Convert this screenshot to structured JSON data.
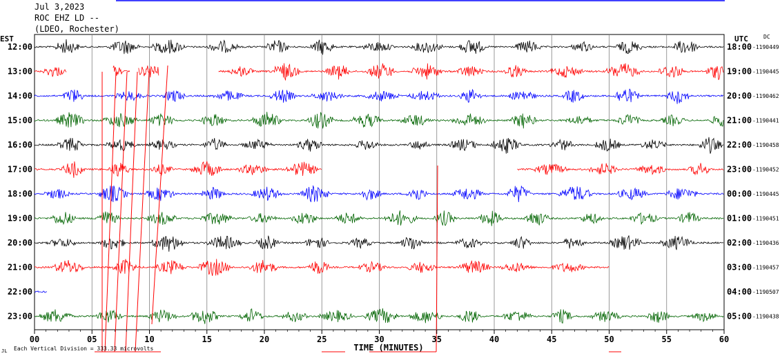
{
  "header": {
    "date": "Jul 3,2023",
    "station": "ROC EHZ LD --",
    "network": "(LDEO, Rochester)"
  },
  "labels": {
    "left_tz": "EST",
    "right_tz": "UTC",
    "dc": "DC",
    "xlabel": "TIME (MINUTES)",
    "scale_note": "Each Vertical Division = 333.33 microvolts"
  },
  "colors": {
    "black": "#000000",
    "red": "#ff0000",
    "blue": "#0000ff",
    "green": "#006400",
    "grid": "#808080"
  },
  "chart_data": {
    "type": "line",
    "xlabel": "TIME (MINUTES)",
    "xlim": [
      0,
      60
    ],
    "x_ticks": [
      "00",
      "05",
      "10",
      "15",
      "20",
      "25",
      "30",
      "35",
      "40",
      "45",
      "50",
      "55",
      "60"
    ],
    "grid": "vertical every 5 minutes",
    "rows": [
      {
        "est": "12:00",
        "utc": "18:00",
        "dc": "-1190449",
        "color": "black",
        "start": 0,
        "end": 60,
        "gaps": []
      },
      {
        "est": "13:00",
        "utc": "19:00",
        "dc": "-1190445",
        "color": "red",
        "start": 0,
        "end": 60,
        "gaps": [
          [
            2.8,
            6.8
          ],
          [
            8.3,
            9.0
          ],
          [
            10.8,
            16.0
          ]
        ]
      },
      {
        "est": "14:00",
        "utc": "20:00",
        "dc": "-1190462",
        "color": "blue",
        "start": 0,
        "end": 60,
        "gaps": []
      },
      {
        "est": "15:00",
        "utc": "21:00",
        "dc": "-1190441",
        "color": "green",
        "start": 0,
        "end": 60,
        "gaps": []
      },
      {
        "est": "16:00",
        "utc": "22:00",
        "dc": "-1190458",
        "color": "black",
        "start": 0,
        "end": 60,
        "gaps": []
      },
      {
        "est": "17:00",
        "utc": "23:00",
        "dc": "-1190452",
        "color": "red",
        "start": 0,
        "end": 60,
        "gaps": [
          [
            25.0,
            42.0
          ]
        ]
      },
      {
        "est": "18:00",
        "utc": "00:00",
        "dc": "-1190445",
        "color": "blue",
        "start": 0,
        "end": 60,
        "gaps": []
      },
      {
        "est": "19:00",
        "utc": "01:00",
        "dc": "-1190451",
        "color": "green",
        "start": 0,
        "end": 60,
        "gaps": []
      },
      {
        "est": "20:00",
        "utc": "02:00",
        "dc": "-1190436",
        "color": "black",
        "start": 0,
        "end": 60,
        "gaps": []
      },
      {
        "est": "21:00",
        "utc": "03:00",
        "dc": "-1190457",
        "color": "red",
        "start": 0,
        "end": 50,
        "gaps": []
      },
      {
        "est": "22:00",
        "utc": "04:00",
        "dc": "-1190507",
        "color": "blue",
        "start": 0,
        "end": 1.1,
        "gaps": []
      },
      {
        "est": "23:00",
        "utc": "05:00",
        "dc": "-1190438",
        "color": "green",
        "start": 0,
        "end": 60,
        "gaps": []
      }
    ]
  }
}
